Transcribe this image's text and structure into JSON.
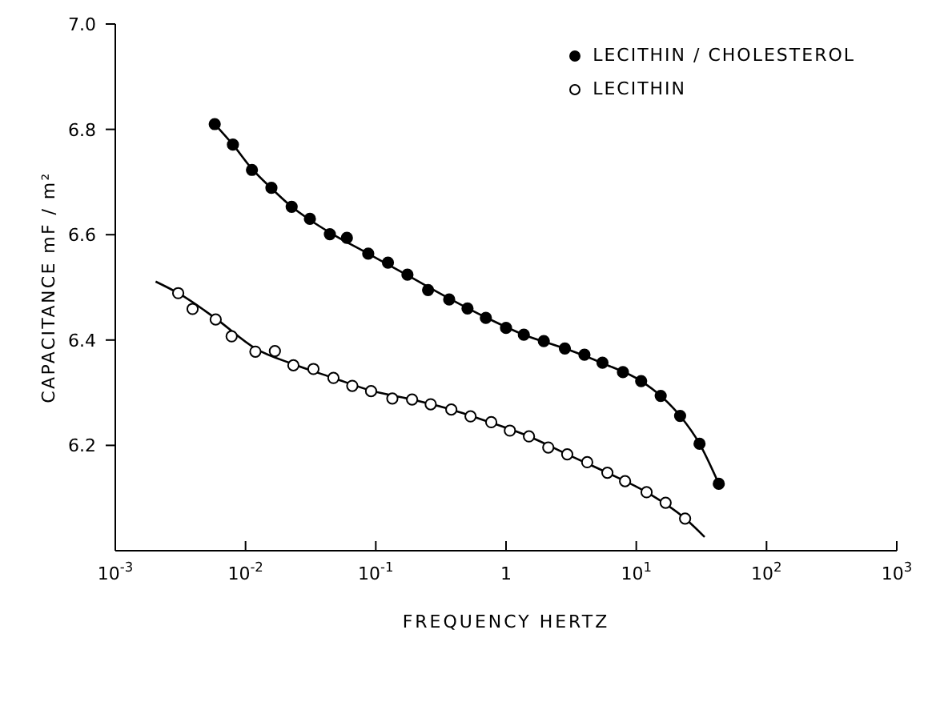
{
  "chart_data": {
    "type": "scatter",
    "xlabel": "FREQUENCY    HERTZ",
    "ylabel": "CAPACITANCE   mF / m²",
    "log": "x",
    "xlim": [
      0.001,
      1000
    ],
    "ylim": [
      6.0,
      7.0
    ],
    "xticks": [
      {
        "value": 0.001,
        "label": "10$^{-3}$"
      },
      {
        "value": 0.01,
        "label": "10$^{-2}$"
      },
      {
        "value": 0.1,
        "label": "10$^{-1}$"
      },
      {
        "value": 1,
        "label": "1"
      },
      {
        "value": 10,
        "label": "10$^{1}$"
      },
      {
        "value": 100,
        "label": "10$^{2}$"
      },
      {
        "value": 1000,
        "label": "10$^{3}$"
      }
    ],
    "yticks": [
      6.2,
      6.4,
      6.6,
      6.8,
      {
        "value": 7.0,
        "label": "7.0"
      }
    ],
    "legend": "top right",
    "marker": "circle",
    "series": [
      {
        "name": "LECITHIN / CHOLESTEROL",
        "color": "#000000",
        "x": [
          0.0058,
          0.008,
          0.0112,
          0.0158,
          0.0226,
          0.0312,
          0.0444,
          0.06,
          0.0875,
          0.124,
          0.175,
          0.252,
          0.366,
          0.506,
          0.7,
          1.0,
          1.37,
          1.95,
          2.83,
          4.0,
          5.5,
          7.9,
          10.9,
          15.4,
          21.7,
          30.6,
          43
        ],
        "values": [
          6.81,
          6.771,
          6.723,
          6.689,
          6.653,
          6.63,
          6.601,
          6.594,
          6.564,
          6.547,
          6.524,
          6.495,
          6.477,
          6.46,
          6.442,
          6.423,
          6.41,
          6.398,
          6.384,
          6.372,
          6.357,
          6.339,
          6.322,
          6.294,
          6.256,
          6.203,
          6.127
        ]
      },
      {
        "name": "LECITHIN",
        "color": "#ffffff",
        "x": [
          0.00304,
          0.00392,
          0.0059,
          0.00782,
          0.0119,
          0.0168,
          0.0233,
          0.0332,
          0.0473,
          0.066,
          0.092,
          0.134,
          0.19,
          0.264,
          0.38,
          0.534,
          0.77,
          1.07,
          1.5,
          2.11,
          2.95,
          4.2,
          6.0,
          8.2,
          12.0,
          16.8,
          23.7
        ],
        "values": [
          6.489,
          6.459,
          6.439,
          6.407,
          6.378,
          6.379,
          6.352,
          6.345,
          6.328,
          6.313,
          6.303,
          6.289,
          6.287,
          6.278,
          6.268,
          6.255,
          6.244,
          6.228,
          6.217,
          6.196,
          6.183,
          6.168,
          6.148,
          6.132,
          6.111,
          6.091,
          6.061
        ]
      },
      {
        "type": "line",
        "marker": "none",
        "color": "#000000",
        "x": [
          0.0058,
          0.008,
          0.0112,
          0.0158,
          0.0226,
          0.0312,
          0.0444,
          0.0875,
          0.175,
          0.366,
          0.7,
          1.37,
          2.83,
          5.5,
          10.9,
          15.4,
          21.7,
          30.6,
          43
        ],
        "values": [
          6.81,
          6.771,
          6.725,
          6.688,
          6.653,
          6.628,
          6.604,
          6.564,
          6.523,
          6.479,
          6.443,
          6.41,
          6.384,
          6.356,
          6.322,
          6.294,
          6.256,
          6.203,
          6.127
        ]
      },
      {
        "type": "line",
        "marker": "none",
        "color": "#000000",
        "x": [
          0.00204,
          0.00304,
          0.0059,
          0.0119,
          0.0233,
          0.0473,
          0.092,
          0.19,
          0.38,
          0.77,
          1.5,
          2.95,
          6.0,
          12.0,
          23.7,
          33.5
        ],
        "values": [
          6.511,
          6.489,
          6.441,
          6.384,
          6.354,
          6.328,
          6.304,
          6.287,
          6.268,
          6.243,
          6.217,
          6.183,
          6.148,
          6.111,
          6.061,
          6.026
        ]
      }
    ]
  }
}
